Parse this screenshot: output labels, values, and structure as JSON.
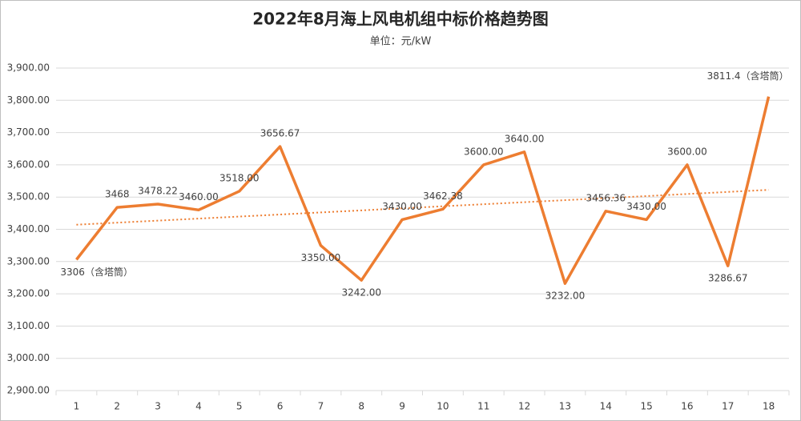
{
  "chart_data": {
    "type": "line",
    "title": "2022年8月海上风电机组中标价格趋势图",
    "subtitle": "单位：元/kW",
    "categories": [
      1,
      2,
      3,
      4,
      5,
      6,
      7,
      8,
      9,
      10,
      11,
      12,
      13,
      14,
      15,
      16,
      17,
      18
    ],
    "series": [
      {
        "color": "#ed7d31",
        "values": [
          3306,
          3468,
          3478.22,
          3460,
          3518,
          3656.67,
          3350,
          3242,
          3430,
          3462.38,
          3600,
          3640,
          3232,
          3456.36,
          3430,
          3600,
          3286.67,
          3811.4
        ],
        "value_labels": [
          "3306（含塔筒）",
          "3468",
          "3478.22",
          "3460.00",
          "3518.00",
          "3656.67",
          "3350.00",
          "3242.00",
          "3430.00",
          "3462.38",
          "3600.00",
          "3640.00",
          "3232.00",
          "3456.36",
          "3430.00",
          "3600.00",
          "3286.67",
          "3811.4（含塔筒）"
        ]
      }
    ],
    "trendline": true,
    "ylim": [
      2900,
      3900
    ],
    "yticks": [
      {
        "value": 2900,
        "label": "2,900.00"
      },
      {
        "value": 3000,
        "label": "3,000.00"
      },
      {
        "value": 3100,
        "label": "3,100.00"
      },
      {
        "value": 3200,
        "label": "3,200.00"
      },
      {
        "value": 3300,
        "label": "3,300.00"
      },
      {
        "value": 3400,
        "label": "3,400.00"
      },
      {
        "value": 3500,
        "label": "3,500.00"
      },
      {
        "value": 3600,
        "label": "3,600.00"
      },
      {
        "value": 3700,
        "label": "3,700.00"
      },
      {
        "value": 3800,
        "label": "3,800.00"
      },
      {
        "value": 3900,
        "label": "3,900.00"
      }
    ],
    "grid": true
  }
}
